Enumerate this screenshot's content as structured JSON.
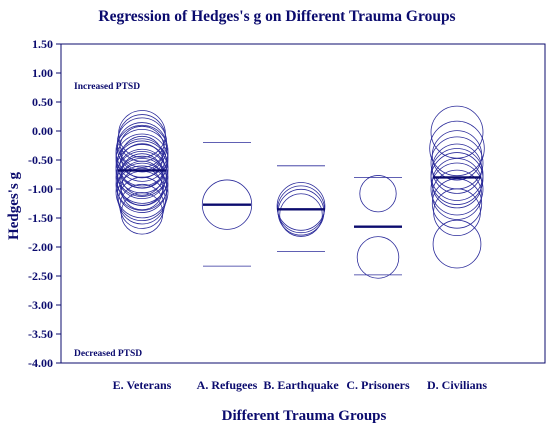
{
  "chart_data": {
    "type": "scatter",
    "title": "Regression of Hedges's g on Different Trauma Groups",
    "xlabel": "Different Trauma Groups",
    "ylabel": "Hedges's g",
    "ylim": [
      -4.0,
      1.5
    ],
    "yticks": [
      "1.50",
      "1.00",
      "0.50",
      "0.00",
      "-0.50",
      "-1.00",
      "-1.50",
      "-2.00",
      "-2.50",
      "-3.00",
      "-3.50",
      "-4.00"
    ],
    "categories": [
      "E. Veterans",
      "A. Refugees",
      "B. Earthquake",
      "C. Prisoners",
      "D. Civilians"
    ],
    "annotations": {
      "top": "Increased PTSD",
      "bottom": "Decreased  PTSD"
    },
    "groups": [
      {
        "category": "E. Veterans",
        "mean": -0.68,
        "ci": null,
        "points": [
          {
            "g": -0.05,
            "w": 0.9
          },
          {
            "g": -0.12,
            "w": 0.9
          },
          {
            "g": -0.2,
            "w": 0.95
          },
          {
            "g": -0.28,
            "w": 0.95
          },
          {
            "g": -0.35,
            "w": 1.0
          },
          {
            "g": -0.42,
            "w": 1.0
          },
          {
            "g": -0.5,
            "w": 1.0
          },
          {
            "g": -0.56,
            "w": 0.95
          },
          {
            "g": -0.62,
            "w": 1.0
          },
          {
            "g": -0.68,
            "w": 1.0
          },
          {
            "g": -0.74,
            "w": 0.95
          },
          {
            "g": -0.8,
            "w": 1.0
          },
          {
            "g": -0.86,
            "w": 0.95
          },
          {
            "g": -0.92,
            "w": 1.0
          },
          {
            "g": -0.98,
            "w": 0.95
          },
          {
            "g": -1.05,
            "w": 1.0
          },
          {
            "g": -1.12,
            "w": 0.95
          },
          {
            "g": -1.2,
            "w": 0.9
          },
          {
            "g": -1.3,
            "w": 0.85
          },
          {
            "g": -1.42,
            "w": 0.8
          },
          {
            "g": -0.3,
            "w": 0.85
          },
          {
            "g": -0.6,
            "w": 0.85
          },
          {
            "g": -0.9,
            "w": 0.85
          },
          {
            "g": -0.45,
            "w": 0.8
          },
          {
            "g": -0.75,
            "w": 0.8
          },
          {
            "g": -1.0,
            "w": 0.8
          }
        ]
      },
      {
        "category": "A. Refugees",
        "mean": -1.27,
        "ci": [
          -0.2,
          -2.33
        ],
        "points": [
          {
            "g": -1.27,
            "w": 0.95
          }
        ]
      },
      {
        "category": "B. Earthquake",
        "mean": -1.35,
        "ci": [
          -0.6,
          -2.08
        ],
        "points": [
          {
            "g": -1.3,
            "w": 0.92
          },
          {
            "g": -1.35,
            "w": 0.9
          },
          {
            "g": -1.4,
            "w": 0.88
          },
          {
            "g": -1.45,
            "w": 0.82
          }
        ]
      },
      {
        "category": "C. Prisoners",
        "mean": -1.65,
        "ci": [
          -0.8,
          -2.48
        ],
        "points": [
          {
            "g": -1.08,
            "w": 0.7
          },
          {
            "g": -2.18,
            "w": 0.8
          }
        ]
      },
      {
        "category": "D. Civilians",
        "mean": -0.8,
        "ci": null,
        "points": [
          {
            "g": -0.02,
            "w": 1.0
          },
          {
            "g": -0.3,
            "w": 1.05
          },
          {
            "g": -0.42,
            "w": 0.95
          },
          {
            "g": -0.55,
            "w": 1.0
          },
          {
            "g": -0.65,
            "w": 0.95
          },
          {
            "g": -0.75,
            "w": 1.0
          },
          {
            "g": -0.82,
            "w": 1.0
          },
          {
            "g": -0.9,
            "w": 0.95
          },
          {
            "g": -1.0,
            "w": 1.0
          },
          {
            "g": -1.1,
            "w": 0.95
          },
          {
            "g": -1.25,
            "w": 0.95
          },
          {
            "g": -1.4,
            "w": 0.9
          },
          {
            "g": -1.95,
            "w": 0.92
          }
        ]
      }
    ],
    "colors": {
      "ink": "#0b0b6e",
      "circle": "#2b2b9a"
    },
    "grid": false,
    "legend": "none"
  }
}
